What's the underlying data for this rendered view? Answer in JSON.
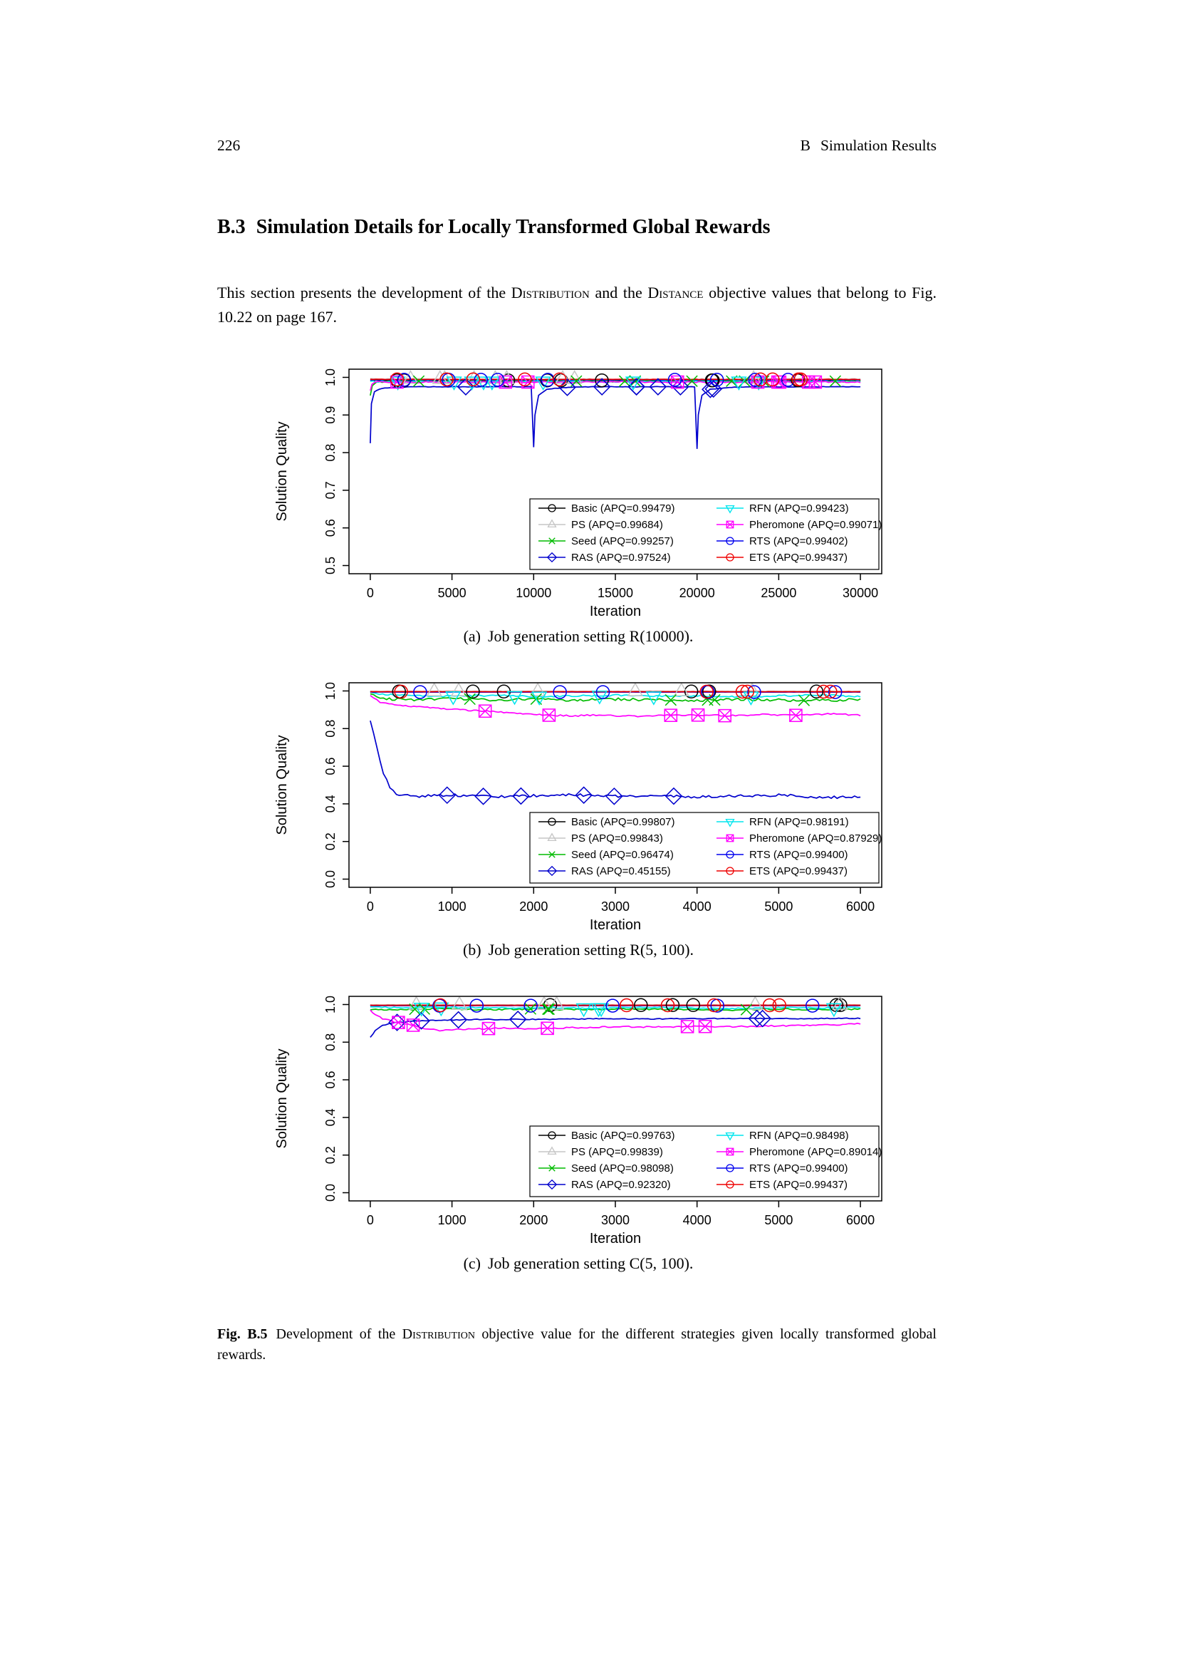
{
  "page": {
    "page_number": "226",
    "running_header": {
      "num": "B",
      "text": "Simulation Results"
    },
    "section_title": {
      "num": "B.3",
      "text": "Simulation Details for Locally Transformed Global Rewards"
    },
    "paragraph": {
      "part1": "This section presents the development of the ",
      "sc1": "Distribution",
      "part2": " and the ",
      "sc2": "Distance",
      "part3": " objective values that belong to Fig. 10.22 on page 167."
    },
    "fig_caption": {
      "tag": "Fig. B.5",
      "part1": "Development of the ",
      "sc1": "Distribution",
      "part2": " objective value for the different strategies given locally transformed global rewards."
    }
  },
  "chart_data": [
    {
      "type": "line",
      "caption": {
        "tag": "(a)",
        "text": "Job generation setting R(10000)."
      },
      "xlabel": "Iteration",
      "ylabel": "Solution Quality",
      "xlim": [
        0,
        30000
      ],
      "ylim": [
        0.5,
        1.0
      ],
      "xticks": [
        0,
        5000,
        10000,
        15000,
        20000,
        25000,
        30000
      ],
      "xtick_labels": [
        "0",
        "5000",
        "10000",
        "15000",
        "20000",
        "25000",
        "30000"
      ],
      "yticks": [
        0.5,
        0.6,
        0.7,
        0.8,
        0.9,
        1.0
      ],
      "ytick_labels": [
        "0.5",
        "0.6",
        "0.7",
        "0.8",
        "0.9",
        "1.0"
      ],
      "grid": false,
      "legend_position": "bottom-right",
      "marker_count": 9,
      "series": [
        {
          "name": "Basic",
          "label": "Basic (APQ=0.99479)",
          "color": "#000000",
          "marker": "circle",
          "x": [
            0,
            30000
          ],
          "y": [
            0.992,
            0.992
          ],
          "jitter": 0.0012
        },
        {
          "name": "PS",
          "label": "PS (APQ=0.99684)",
          "color": "#C6C6C6",
          "marker": "triangle-up",
          "x": [
            0,
            30000
          ],
          "y": [
            0.9955,
            0.9955
          ],
          "jitter": 0.0012
        },
        {
          "name": "Seed",
          "label": "Seed (APQ=0.99257)",
          "color": "#00BB00",
          "marker": "x",
          "x": [
            0,
            120,
            350,
            900,
            30000
          ],
          "y": [
            0.952,
            0.978,
            0.987,
            0.99,
            0.99
          ],
          "jitter": 0.0025
        },
        {
          "name": "RAS",
          "label": "RAS (APQ=0.97524)",
          "color": "#0000CD",
          "marker": "diamond",
          "x": [
            0,
            70,
            250,
            700,
            1600,
            3000,
            9850,
            10000,
            10080,
            10300,
            10800,
            11800,
            13500,
            19850,
            20000,
            20080,
            20300,
            20800,
            21800,
            23500,
            30000
          ],
          "y": [
            0.825,
            0.93,
            0.962,
            0.971,
            0.974,
            0.975,
            0.975,
            0.815,
            0.9,
            0.952,
            0.968,
            0.973,
            0.975,
            0.975,
            0.81,
            0.9,
            0.952,
            0.968,
            0.973,
            0.975,
            0.975
          ],
          "jitter": 0.0008
        },
        {
          "name": "RFN",
          "label": "RFN (APQ=0.99423)",
          "color": "#00E5EE",
          "marker": "triangle-down",
          "x": [
            0,
            30000
          ],
          "y": [
            0.989,
            0.989
          ],
          "jitter": 0.002
        },
        {
          "name": "Pheromone",
          "label": "Pheromone (APQ=0.99071)",
          "color": "#FF00FF",
          "marker": "square-x",
          "x": [
            0,
            100,
            400,
            30000
          ],
          "y": [
            0.965,
            0.983,
            0.9875,
            0.9875
          ],
          "jitter": 0.0018
        },
        {
          "name": "RTS",
          "label": "RTS (APQ=0.99402)",
          "color": "#0000EE",
          "marker": "circle",
          "x": [
            0,
            30000
          ],
          "y": [
            0.9935,
            0.9935
          ],
          "jitter": 0.0006
        },
        {
          "name": "ETS",
          "label": "ETS (APQ=0.99437)",
          "color": "#EE0000",
          "marker": "circle",
          "x": [
            0,
            30000
          ],
          "y": [
            0.9945,
            0.9945
          ],
          "jitter": 0.0006
        }
      ]
    },
    {
      "type": "line",
      "caption": {
        "tag": "(b)",
        "text": "Job generation setting R(5, 100)."
      },
      "xlabel": "Iteration",
      "ylabel": "Solution Quality",
      "xlim": [
        0,
        6000
      ],
      "ylim": [
        0.0,
        1.0
      ],
      "xticks": [
        0,
        1000,
        2000,
        3000,
        4000,
        5000,
        6000
      ],
      "xtick_labels": [
        "0",
        "1000",
        "2000",
        "3000",
        "4000",
        "5000",
        "6000"
      ],
      "yticks": [
        0.0,
        0.2,
        0.4,
        0.6,
        0.8,
        1.0
      ],
      "ytick_labels": [
        "0.0",
        "0.2",
        "0.4",
        "0.6",
        "0.8",
        "1.0"
      ],
      "grid": false,
      "legend_position": "bottom-right",
      "marker_count": 6,
      "series": [
        {
          "name": "Basic",
          "label": "Basic (APQ=0.99807)",
          "color": "#000000",
          "marker": "circle",
          "x": [
            0,
            6000
          ],
          "y": [
            0.997,
            0.997
          ],
          "jitter": 0.0006
        },
        {
          "name": "PS",
          "label": "PS (APQ=0.99843)",
          "color": "#C6C6C6",
          "marker": "triangle-up",
          "x": [
            0,
            6000
          ],
          "y": [
            0.998,
            0.998
          ],
          "jitter": 0.0006
        },
        {
          "name": "Seed",
          "label": "Seed (APQ=0.96474)",
          "color": "#00BB00",
          "marker": "x",
          "x": [
            0,
            80,
            200,
            500,
            1000,
            1500,
            2000,
            2500,
            3000,
            3500,
            4000,
            4500,
            5000,
            5500,
            6000
          ],
          "y": [
            0.99,
            0.968,
            0.958,
            0.954,
            0.96,
            0.952,
            0.957,
            0.951,
            0.956,
            0.953,
            0.95,
            0.956,
            0.952,
            0.949,
            0.955
          ],
          "jitter": 0.007
        },
        {
          "name": "RAS",
          "label": "RAS (APQ=0.45155)",
          "color": "#0000CD",
          "marker": "diamond",
          "x": [
            0,
            80,
            160,
            240,
            320,
            420,
            600,
            1000,
            1500,
            2000,
            2500,
            3000,
            3500,
            4000,
            4500,
            5000,
            5500,
            6000
          ],
          "y": [
            0.84,
            0.7,
            0.565,
            0.49,
            0.452,
            0.443,
            0.441,
            0.447,
            0.438,
            0.443,
            0.448,
            0.44,
            0.445,
            0.436,
            0.442,
            0.447,
            0.433,
            0.44
          ],
          "jitter": 0.007
        },
        {
          "name": "RFN",
          "label": "RFN (APQ=0.98191)",
          "color": "#00E5EE",
          "marker": "triangle-down",
          "x": [
            0,
            150,
            500,
            1000,
            1500,
            2000,
            2500,
            3000,
            3500,
            4000,
            4500,
            5000,
            5500,
            6000
          ],
          "y": [
            0.995,
            0.982,
            0.975,
            0.972,
            0.976,
            0.97,
            0.974,
            0.977,
            0.971,
            0.975,
            0.969,
            0.974,
            0.978,
            0.972
          ],
          "jitter": 0.0045
        },
        {
          "name": "Pheromone",
          "label": "Pheromone (APQ=0.87929)",
          "color": "#FF00FF",
          "marker": "square-x",
          "x": [
            0,
            120,
            300,
            500,
            700,
            900,
            1100,
            1400,
            1700,
            2000,
            2400,
            2800,
            3200,
            3600,
            4000,
            4400,
            4800,
            5200,
            5600,
            6000
          ],
          "y": [
            0.975,
            0.94,
            0.925,
            0.916,
            0.912,
            0.905,
            0.9,
            0.893,
            0.885,
            0.874,
            0.868,
            0.871,
            0.866,
            0.87,
            0.872,
            0.868,
            0.874,
            0.87,
            0.878,
            0.872
          ],
          "jitter": 0.004
        },
        {
          "name": "RTS",
          "label": "RTS (APQ=0.99400)",
          "color": "#0000EE",
          "marker": "circle",
          "x": [
            0,
            6000
          ],
          "y": [
            0.994,
            0.994
          ],
          "jitter": 0.0005
        },
        {
          "name": "ETS",
          "label": "ETS (APQ=0.99437)",
          "color": "#EE0000",
          "marker": "circle",
          "x": [
            0,
            6000
          ],
          "y": [
            0.996,
            0.996
          ],
          "jitter": 0.0005
        }
      ]
    },
    {
      "type": "line",
      "caption": {
        "tag": "(c)",
        "text": "Job generation setting C(5, 100)."
      },
      "xlabel": "Iteration",
      "ylabel": "Solution Quality",
      "xlim": [
        0,
        6000
      ],
      "ylim": [
        0.0,
        1.0
      ],
      "xticks": [
        0,
        1000,
        2000,
        3000,
        4000,
        5000,
        6000
      ],
      "xtick_labels": [
        "0",
        "1000",
        "2000",
        "3000",
        "4000",
        "5000",
        "6000"
      ],
      "yticks": [
        0.0,
        0.2,
        0.4,
        0.6,
        0.8,
        1.0
      ],
      "ytick_labels": [
        "0.0",
        "0.2",
        "0.4",
        "0.6",
        "0.8",
        "1.0"
      ],
      "grid": false,
      "legend_position": "bottom-right",
      "marker_count": 6,
      "series": [
        {
          "name": "Basic",
          "label": "Basic (APQ=0.99763)",
          "color": "#000000",
          "marker": "circle",
          "x": [
            0,
            6000
          ],
          "y": [
            0.997,
            0.997
          ],
          "jitter": 0.0006
        },
        {
          "name": "PS",
          "label": "PS (APQ=0.99839)",
          "color": "#C6C6C6",
          "marker": "triangle-up",
          "x": [
            0,
            6000
          ],
          "y": [
            0.998,
            0.998
          ],
          "jitter": 0.0006
        },
        {
          "name": "Seed",
          "label": "Seed (APQ=0.98098)",
          "color": "#00BB00",
          "marker": "x",
          "x": [
            0,
            300,
            800,
            1400,
            2000,
            2600,
            3200,
            3800,
            4400,
            5000,
            5600,
            6000
          ],
          "y": [
            0.975,
            0.972,
            0.978,
            0.973,
            0.977,
            0.972,
            0.976,
            0.974,
            0.971,
            0.976,
            0.973,
            0.977
          ],
          "jitter": 0.004
        },
        {
          "name": "RAS",
          "label": "RAS (APQ=0.92320)",
          "color": "#0000CD",
          "marker": "diamond",
          "x": [
            0,
            60,
            150,
            300,
            500,
            800,
            1200,
            1700,
            2200,
            2800,
            3400,
            4000,
            4600,
            5200,
            5700,
            6000
          ],
          "y": [
            0.825,
            0.862,
            0.89,
            0.904,
            0.911,
            0.916,
            0.92,
            0.921,
            0.922,
            0.924,
            0.923,
            0.925,
            0.926,
            0.925,
            0.927,
            0.926
          ],
          "jitter": 0.0022
        },
        {
          "name": "RFN",
          "label": "RFN (APQ=0.98498)",
          "color": "#00E5EE",
          "marker": "triangle-down",
          "x": [
            0,
            400,
            900,
            1500,
            2100,
            2700,
            3300,
            3900,
            4500,
            5100,
            5700,
            6000
          ],
          "y": [
            0.988,
            0.982,
            0.985,
            0.981,
            0.984,
            0.98,
            0.985,
            0.982,
            0.979,
            0.984,
            0.981,
            0.985
          ],
          "jitter": 0.003
        },
        {
          "name": "Pheromone",
          "label": "Pheromone (APQ=0.89014)",
          "color": "#FF00FF",
          "marker": "square-x",
          "x": [
            0,
            60,
            150,
            300,
            500,
            700,
            850,
            1000,
            1300,
            1600,
            2000,
            2400,
            2800,
            3200,
            3600,
            4000,
            4400,
            4800,
            5200,
            5600,
            6000
          ],
          "y": [
            0.97,
            0.945,
            0.925,
            0.908,
            0.893,
            0.87,
            0.862,
            0.867,
            0.871,
            0.874,
            0.872,
            0.876,
            0.88,
            0.882,
            0.88,
            0.884,
            0.882,
            0.886,
            0.888,
            0.891,
            0.899
          ],
          "jitter": 0.0035
        },
        {
          "name": "RTS",
          "label": "RTS (APQ=0.99400)",
          "color": "#0000EE",
          "marker": "circle",
          "x": [
            0,
            6000
          ],
          "y": [
            0.994,
            0.994
          ],
          "jitter": 0.0005
        },
        {
          "name": "ETS",
          "label": "ETS (APQ=0.99437)",
          "color": "#EE0000",
          "marker": "circle",
          "x": [
            0,
            6000
          ],
          "y": [
            0.996,
            0.996
          ],
          "jitter": 0.0005
        }
      ]
    }
  ]
}
